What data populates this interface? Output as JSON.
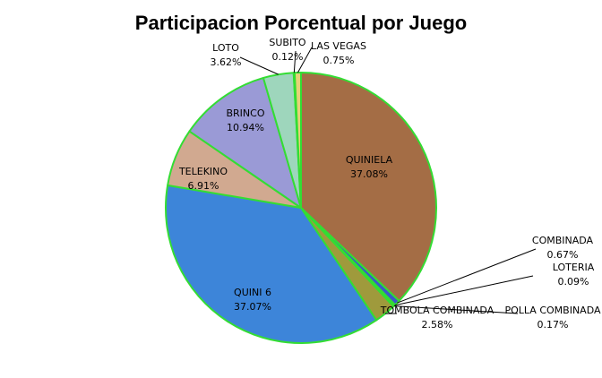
{
  "chart_data": {
    "type": "pie",
    "title": "Participacion Porcentual por Juego",
    "slices": [
      {
        "label": "QUINIELA",
        "value": 37.08,
        "display": "37.08%",
        "color": "#a46d45"
      },
      {
        "label": "COMBINADA",
        "value": 0.67,
        "display": "0.67%",
        "color": "#3b59c8"
      },
      {
        "label": "LOTERIA",
        "value": 0.09,
        "display": "0.09%",
        "color": "#8a8a8a"
      },
      {
        "label": "POLLA COMBINADA",
        "value": 0.17,
        "display": "0.17%",
        "color": "#6d7a2a"
      },
      {
        "label": "TOMBOLA COMBINADA",
        "value": 2.58,
        "display": "2.58%",
        "color": "#9f9a3c"
      },
      {
        "label": "QUINI 6",
        "value": 37.07,
        "display": "37.07%",
        "color": "#3d85d9"
      },
      {
        "label": "TELEKINO",
        "value": 6.91,
        "display": "6.91%",
        "color": "#d1a990"
      },
      {
        "label": "BRINCO",
        "value": 10.94,
        "display": "10.94%",
        "color": "#9a9ad6"
      },
      {
        "label": "LOTO",
        "value": 3.62,
        "display": "3.62%",
        "color": "#9ed6bc"
      },
      {
        "label": "SUBITO",
        "value": 0.12,
        "display": "0.12%",
        "color": "#c9b6d8"
      },
      {
        "label": "LAS VEGAS",
        "value": 0.75,
        "display": "0.75%",
        "color": "#e6d178"
      }
    ],
    "slice_border_color": "#33dd33",
    "legend": "none"
  }
}
